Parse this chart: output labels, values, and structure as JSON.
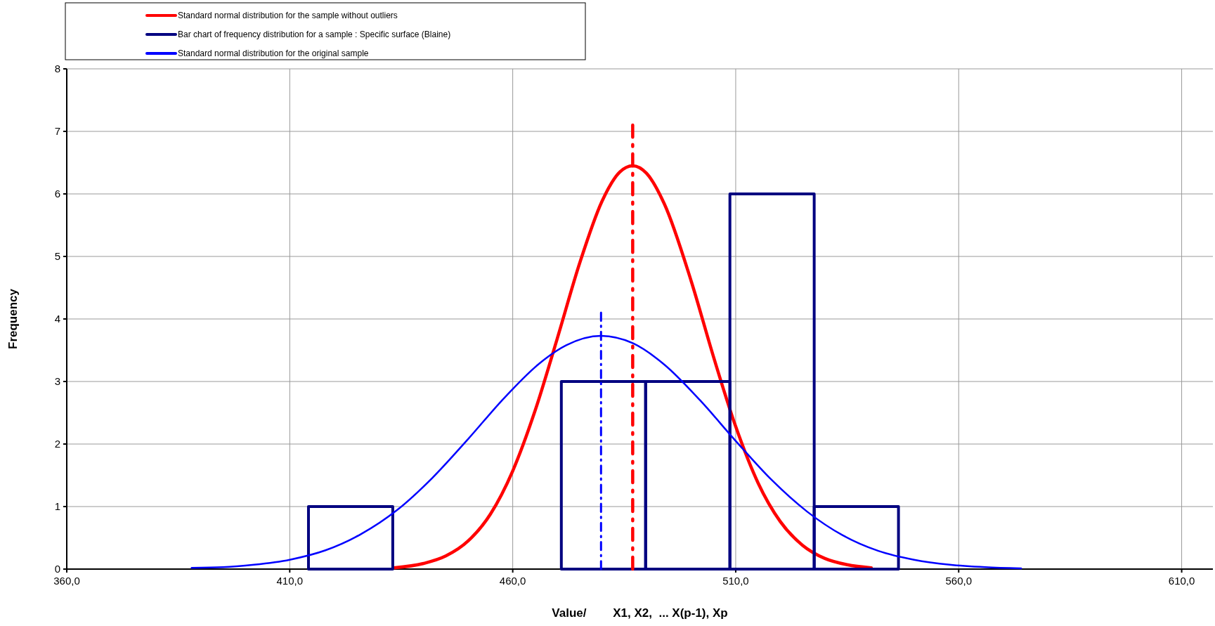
{
  "chart_data": {
    "type": "histogram",
    "xlabel": "Value/        X1, X2,  ... X(p-1), Xp",
    "ylabel": "Frequency",
    "xlim": [
      360,
      617
    ],
    "xticks": [
      {
        "value": 360,
        "label": "360,0"
      },
      {
        "value": 410,
        "label": "410,0"
      },
      {
        "value": 460,
        "label": "460,0"
      },
      {
        "value": 510,
        "label": "510,0"
      },
      {
        "value": 560,
        "label": "560,0"
      },
      {
        "value": 610,
        "label": "610,0"
      }
    ],
    "ylim": [
      0,
      8
    ],
    "yticks": [
      0,
      1,
      2,
      3,
      4,
      5,
      6,
      7,
      8
    ],
    "grid": true,
    "legend": "top",
    "series": [
      {
        "type": "line",
        "name": "Standard normal distribution for the sample without outliers",
        "color": "#ff0000",
        "x": [
          433.3,
          440,
          445,
          450,
          455,
          460,
          465,
          470,
          475,
          480,
          484,
          486.9,
          490,
          494,
          500,
          505,
          510,
          515,
          520,
          525,
          530,
          535,
          540.4
        ],
        "values": [
          0.02,
          0.09,
          0.21,
          0.45,
          0.88,
          1.57,
          2.53,
          3.69,
          4.89,
          5.88,
          6.35,
          6.45,
          6.33,
          5.84,
          4.61,
          3.4,
          2.28,
          1.38,
          0.76,
          0.38,
          0.17,
          0.07,
          0.02
        ]
      },
      {
        "name": "Bar chart of frequency distribution for a sample :  Specific surface (Blaine)",
        "color": "#000080",
        "bins": [
          414.2,
          433.1,
          452,
          470.9,
          489.8,
          508.7,
          527.6,
          546.5
        ],
        "values": [
          1,
          0,
          0,
          3,
          3,
          6,
          1
        ]
      },
      {
        "type": "line",
        "name": "Standard normal distribution for the original sample",
        "color": "#0000ff",
        "x": [
          388,
          395,
          402,
          410,
          418,
          426,
          434,
          442,
          450,
          458,
          466,
          472,
          479.8,
          487,
          494,
          502,
          510,
          518,
          526,
          534,
          542,
          550,
          558,
          566,
          574
        ],
        "values": [
          0.02,
          0.03,
          0.07,
          0.15,
          0.3,
          0.56,
          0.94,
          1.46,
          2.08,
          2.73,
          3.29,
          3.58,
          3.73,
          3.61,
          3.27,
          2.7,
          2.05,
          1.43,
          0.92,
          0.54,
          0.29,
          0.15,
          0.07,
          0.03,
          0.01
        ]
      },
      {
        "type": "line",
        "color": "#ff0000",
        "line_style": "dashed",
        "x": [
          486.9,
          486.9
        ],
        "values": [
          0,
          7.1
        ]
      },
      {
        "type": "line",
        "color": "#0000ff",
        "line_style": "dashed",
        "x": [
          479.8,
          479.8
        ],
        "values": [
          0,
          4.1
        ]
      }
    ]
  }
}
